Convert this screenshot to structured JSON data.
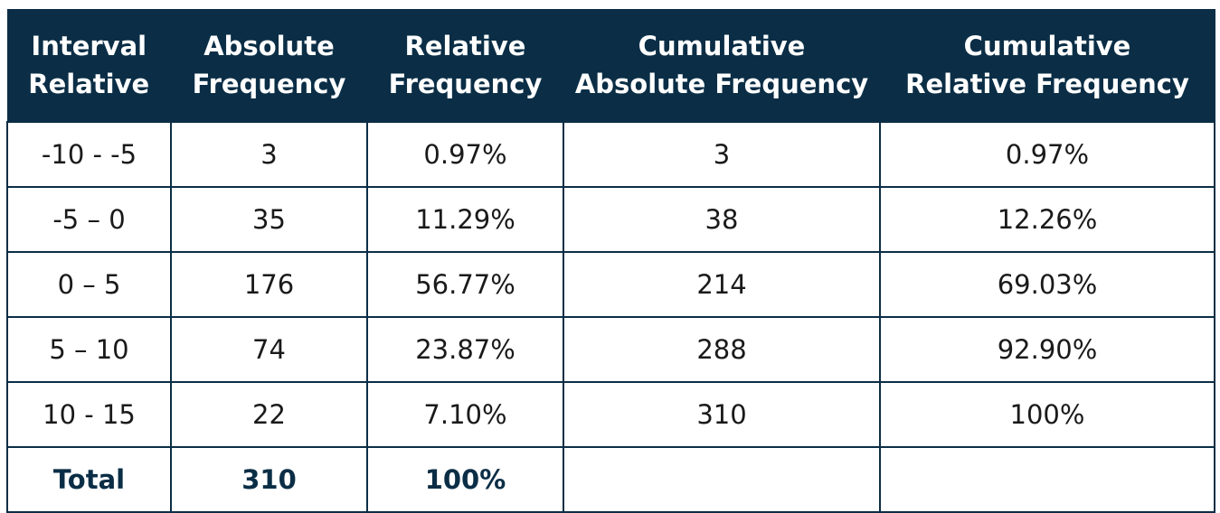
{
  "chart_data": {
    "type": "table",
    "columns": [
      [
        "Interval",
        "Relative"
      ],
      [
        "Absolute",
        "Frequency"
      ],
      [
        "Relative",
        "Frequency"
      ],
      [
        "Cumulative",
        "Absolute Frequency"
      ],
      [
        "Cumulative",
        "Relative Frequency"
      ]
    ],
    "rows": [
      [
        "-10 - -5",
        "3",
        "0.97%",
        "3",
        "0.97%"
      ],
      [
        "-5 – 0",
        "35",
        "11.29%",
        "38",
        "12.26%"
      ],
      [
        "0 – 5",
        "176",
        "56.77%",
        "214",
        "69.03%"
      ],
      [
        "5 – 10",
        "74",
        "23.87%",
        "288",
        "92.90%"
      ],
      [
        "10 - 15",
        "22",
        "7.10%",
        "310",
        "100%"
      ]
    ],
    "total_row": [
      "Total",
      "310",
      "100%",
      "",
      ""
    ]
  },
  "colors": {
    "header_bg": "#0b2e46",
    "header_text": "#ffffff",
    "border": "#0b2e46",
    "total_text": "#0b2e46"
  }
}
